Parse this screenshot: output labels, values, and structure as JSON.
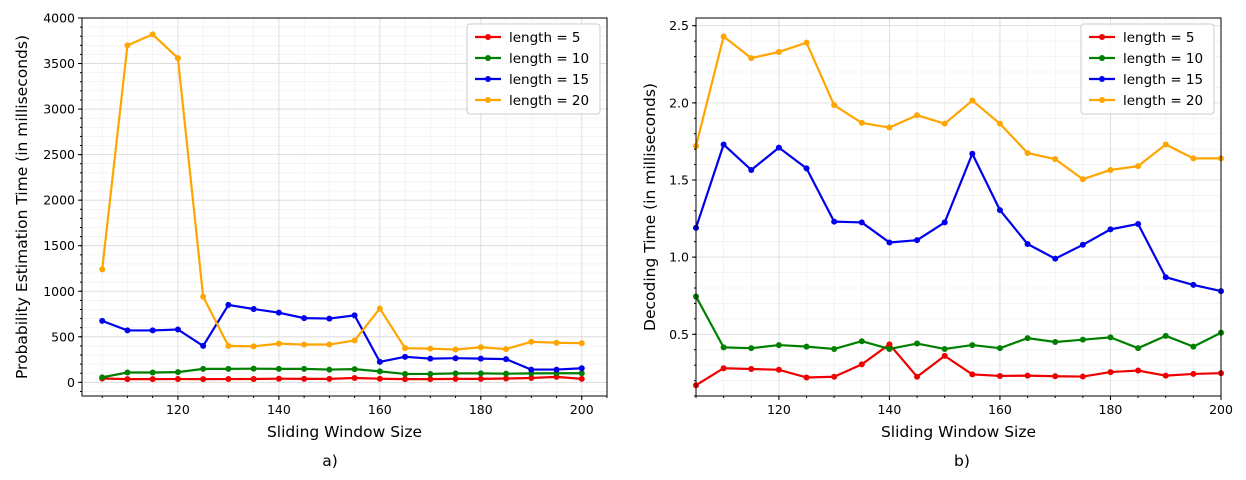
{
  "chart_data": [
    {
      "type": "line",
      "panel_label": "a)",
      "title": "",
      "xlabel": "Sliding Window Size",
      "ylabel": "Probability Estimation Time (in milliseconds)",
      "xlim": [
        101,
        205
      ],
      "ylim": [
        -150,
        4000
      ],
      "xticks": [
        120,
        140,
        160,
        180,
        200
      ],
      "yticks": [
        0,
        500,
        1000,
        1500,
        2000,
        2500,
        3000,
        3500,
        4000
      ],
      "xminor": 5,
      "yminor": 100,
      "grid": true,
      "legend": "top-right",
      "x": [
        105,
        110,
        115,
        120,
        125,
        130,
        135,
        140,
        145,
        150,
        155,
        160,
        165,
        170,
        175,
        180,
        185,
        190,
        195,
        200
      ],
      "series": [
        {
          "name": "length = 5",
          "color": "#ee0000",
          "values": [
            42,
            35,
            35,
            36,
            35,
            36,
            37,
            40,
            38,
            38,
            48,
            40,
            35,
            35,
            38,
            38,
            42,
            48,
            60,
            38
          ]
        },
        {
          "name": "length = 10",
          "color": "#008000",
          "values": [
            55,
            108,
            108,
            112,
            148,
            148,
            150,
            148,
            148,
            140,
            145,
            120,
            92,
            92,
            98,
            98,
            95,
            98,
            100,
            100
          ]
        },
        {
          "name": "length = 15",
          "color": "#0000ee",
          "values": [
            675,
            570,
            570,
            580,
            400,
            850,
            805,
            765,
            705,
            700,
            735,
            225,
            280,
            260,
            265,
            260,
            255,
            140,
            140,
            155
          ]
        },
        {
          "name": "length = 20",
          "color": "#ffa500",
          "values": [
            1240,
            3700,
            3820,
            3560,
            940,
            400,
            395,
            425,
            415,
            415,
            460,
            810,
            375,
            370,
            360,
            385,
            365,
            445,
            435,
            430
          ]
        }
      ]
    },
    {
      "type": "line",
      "panel_label": "b)",
      "title": "",
      "xlabel": "Sliding Window Size",
      "ylabel": "Decoding Time (in milliseconds)",
      "xlim": [
        105,
        200
      ],
      "ylim": [
        0.1,
        2.55
      ],
      "xticks": [
        120,
        140,
        160,
        180,
        200
      ],
      "yticks": [
        0.5,
        1.0,
        1.5,
        2.0,
        2.5
      ],
      "ytick_labels": [
        "0.5",
        "1.0",
        "1.5",
        "2.0",
        "2.5"
      ],
      "xminor": 5,
      "yminor": 0.1,
      "grid": true,
      "legend": "top-right",
      "x": [
        105,
        110,
        115,
        120,
        125,
        130,
        135,
        140,
        145,
        150,
        155,
        160,
        165,
        170,
        175,
        180,
        185,
        190,
        195,
        200
      ],
      "series": [
        {
          "name": "length = 5",
          "color": "#ee0000",
          "values": [
            0.17,
            0.28,
            0.275,
            0.27,
            0.22,
            0.225,
            0.305,
            0.435,
            0.225,
            0.36,
            0.24,
            0.23,
            0.232,
            0.228,
            0.226,
            0.255,
            0.265,
            0.232,
            0.243,
            0.248
          ]
        },
        {
          "name": "length = 10",
          "color": "#008000",
          "values": [
            0.745,
            0.415,
            0.41,
            0.43,
            0.42,
            0.405,
            0.455,
            0.405,
            0.44,
            0.405,
            0.43,
            0.41,
            0.475,
            0.45,
            0.465,
            0.48,
            0.41,
            0.49,
            0.42,
            0.51
          ]
        },
        {
          "name": "length = 15",
          "color": "#0000ee",
          "values": [
            1.19,
            1.73,
            1.565,
            1.71,
            1.575,
            1.23,
            1.225,
            1.095,
            1.11,
            1.225,
            1.67,
            1.305,
            1.085,
            0.99,
            1.08,
            1.18,
            1.215,
            0.87,
            0.82,
            0.78
          ]
        },
        {
          "name": "length = 20",
          "color": "#ffa500",
          "values": [
            1.72,
            2.43,
            2.29,
            2.33,
            2.39,
            1.985,
            1.87,
            1.84,
            1.92,
            1.865,
            2.015,
            1.865,
            1.675,
            1.635,
            1.505,
            1.565,
            1.59,
            1.73,
            1.64,
            1.64
          ]
        }
      ]
    }
  ]
}
